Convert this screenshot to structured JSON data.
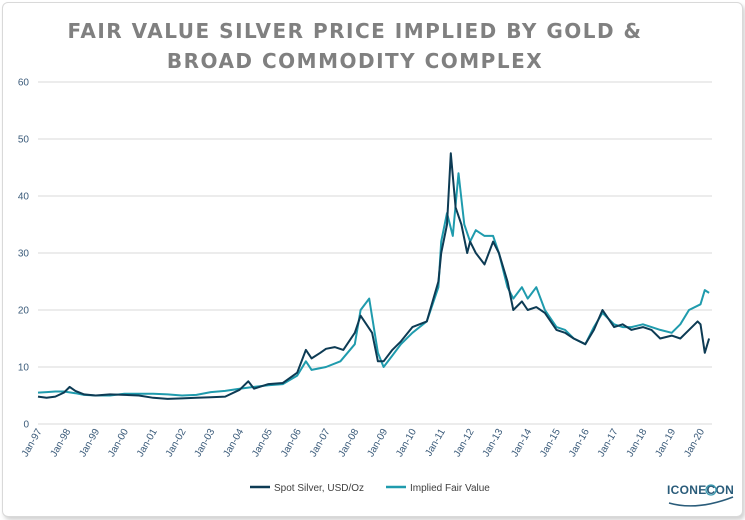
{
  "title_line1": "FAIR VALUE SILVER PRICE IMPLIED BY GOLD &",
  "title_line2": "BROAD COMMODITY COMPLEX",
  "logo": {
    "text_left": "ICON",
    "text_right": "ECON"
  },
  "colors": {
    "spot": "#0d3b54",
    "implied": "#1f9bad",
    "grid": "#d9d9d9",
    "tick": "#3b5b7a"
  },
  "chart_data": {
    "type": "line",
    "title": "FAIR VALUE SILVER PRICE IMPLIED BY GOLD & BROAD COMMODITY COMPLEX",
    "xlabel": "",
    "ylabel": "",
    "ylim": [
      0,
      60
    ],
    "yticks": [
      "0",
      "10",
      "20",
      "30",
      "40",
      "50",
      "60"
    ],
    "xticks": [
      "Jan-97",
      "Jan-98",
      "Jan-99",
      "Jan-00",
      "Jan-01",
      "Jan-02",
      "Jan-03",
      "Jan-04",
      "Jan-05",
      "Jan-06",
      "Jan-07",
      "Jan-08",
      "Jan-09",
      "Jan-10",
      "Jan-11",
      "Jan-12",
      "Jan-13",
      "Jan-14",
      "Jan-15",
      "Jan-16",
      "Jan-17",
      "Jan-18",
      "Jan-19",
      "Jan-20"
    ],
    "xlim": [
      1997.0,
      2020.4
    ],
    "grid": "horizontal",
    "legend": "bottom",
    "series": [
      {
        "name": "Spot Silver, USD/Oz",
        "x": [
          1997.0,
          1997.3,
          1997.6,
          1997.9,
          1998.1,
          1998.3,
          1998.6,
          1999.0,
          1999.5,
          2000.0,
          2000.5,
          2001.0,
          2001.5,
          2002.0,
          2002.5,
          2003.0,
          2003.5,
          2004.0,
          2004.3,
          2004.5,
          2005.0,
          2005.5,
          2006.0,
          2006.3,
          2006.5,
          2006.8,
          2007.0,
          2007.3,
          2007.6,
          2008.0,
          2008.2,
          2008.4,
          2008.6,
          2008.8,
          2009.0,
          2009.3,
          2009.6,
          2010.0,
          2010.5,
          2010.9,
          2011.0,
          2011.2,
          2011.33,
          2011.5,
          2011.7,
          2011.9,
          2012.0,
          2012.2,
          2012.5,
          2012.8,
          2013.0,
          2013.3,
          2013.5,
          2013.8,
          2014.0,
          2014.3,
          2014.6,
          2015.0,
          2015.3,
          2015.6,
          2016.0,
          2016.3,
          2016.6,
          2017.0,
          2017.3,
          2017.6,
          2018.0,
          2018.3,
          2018.6,
          2019.0,
          2019.3,
          2019.6,
          2019.9,
          2020.0,
          2020.15,
          2020.3
        ],
        "y": [
          4.8,
          4.6,
          4.8,
          5.5,
          6.5,
          5.8,
          5.2,
          5.0,
          5.2,
          5.1,
          5.0,
          4.6,
          4.4,
          4.5,
          4.6,
          4.7,
          4.8,
          6.0,
          7.5,
          6.2,
          7.0,
          7.2,
          9.0,
          13.0,
          11.5,
          12.5,
          13.2,
          13.5,
          13.0,
          16.0,
          19.0,
          17.5,
          16.0,
          11.0,
          11.0,
          13.0,
          14.5,
          17.0,
          18.0,
          25.0,
          30.0,
          35.0,
          47.5,
          38.0,
          35.0,
          30.0,
          32.0,
          30.0,
          28.0,
          32.0,
          30.0,
          25.0,
          20.0,
          21.5,
          20.0,
          20.5,
          19.5,
          16.5,
          16.0,
          15.0,
          14.0,
          16.5,
          20.0,
          17.0,
          17.5,
          16.5,
          17.0,
          16.5,
          15.0,
          15.5,
          15.0,
          16.5,
          18.0,
          17.5,
          12.5,
          15.0
        ]
      },
      {
        "name": "Implied Fair Value",
        "x": [
          1997.0,
          1997.3,
          1997.6,
          1997.9,
          1998.3,
          1998.6,
          1999.0,
          1999.5,
          2000.0,
          2000.5,
          2001.0,
          2001.5,
          2002.0,
          2002.5,
          2003.0,
          2003.5,
          2004.0,
          2004.5,
          2005.0,
          2005.5,
          2006.0,
          2006.3,
          2006.5,
          2007.0,
          2007.5,
          2008.0,
          2008.2,
          2008.5,
          2008.8,
          2009.0,
          2009.3,
          2009.6,
          2010.0,
          2010.5,
          2010.9,
          2011.0,
          2011.2,
          2011.4,
          2011.6,
          2011.8,
          2012.0,
          2012.2,
          2012.5,
          2012.8,
          2013.0,
          2013.3,
          2013.5,
          2013.8,
          2014.0,
          2014.3,
          2014.6,
          2015.0,
          2015.3,
          2015.6,
          2016.0,
          2016.3,
          2016.6,
          2017.0,
          2017.3,
          2017.6,
          2018.0,
          2018.3,
          2018.6,
          2019.0,
          2019.3,
          2019.6,
          2020.0,
          2020.15,
          2020.3
        ],
        "y": [
          5.5,
          5.6,
          5.7,
          5.7,
          5.4,
          5.1,
          5.0,
          5.0,
          5.3,
          5.3,
          5.3,
          5.2,
          5.0,
          5.1,
          5.6,
          5.8,
          6.2,
          6.5,
          6.8,
          7.0,
          8.5,
          11.0,
          9.5,
          10.0,
          11.0,
          14.0,
          20.0,
          22.0,
          12.5,
          10.0,
          12.0,
          14.0,
          16.0,
          18.0,
          24.0,
          32.0,
          37.0,
          33.0,
          44.0,
          35.0,
          32.0,
          34.0,
          33.0,
          33.0,
          30.0,
          24.0,
          22.0,
          24.0,
          22.0,
          24.0,
          20.0,
          17.0,
          16.5,
          15.0,
          14.0,
          17.0,
          19.5,
          17.5,
          17.0,
          17.0,
          17.5,
          17.0,
          16.5,
          16.0,
          17.5,
          20.0,
          21.0,
          23.5,
          23.0
        ]
      }
    ]
  }
}
